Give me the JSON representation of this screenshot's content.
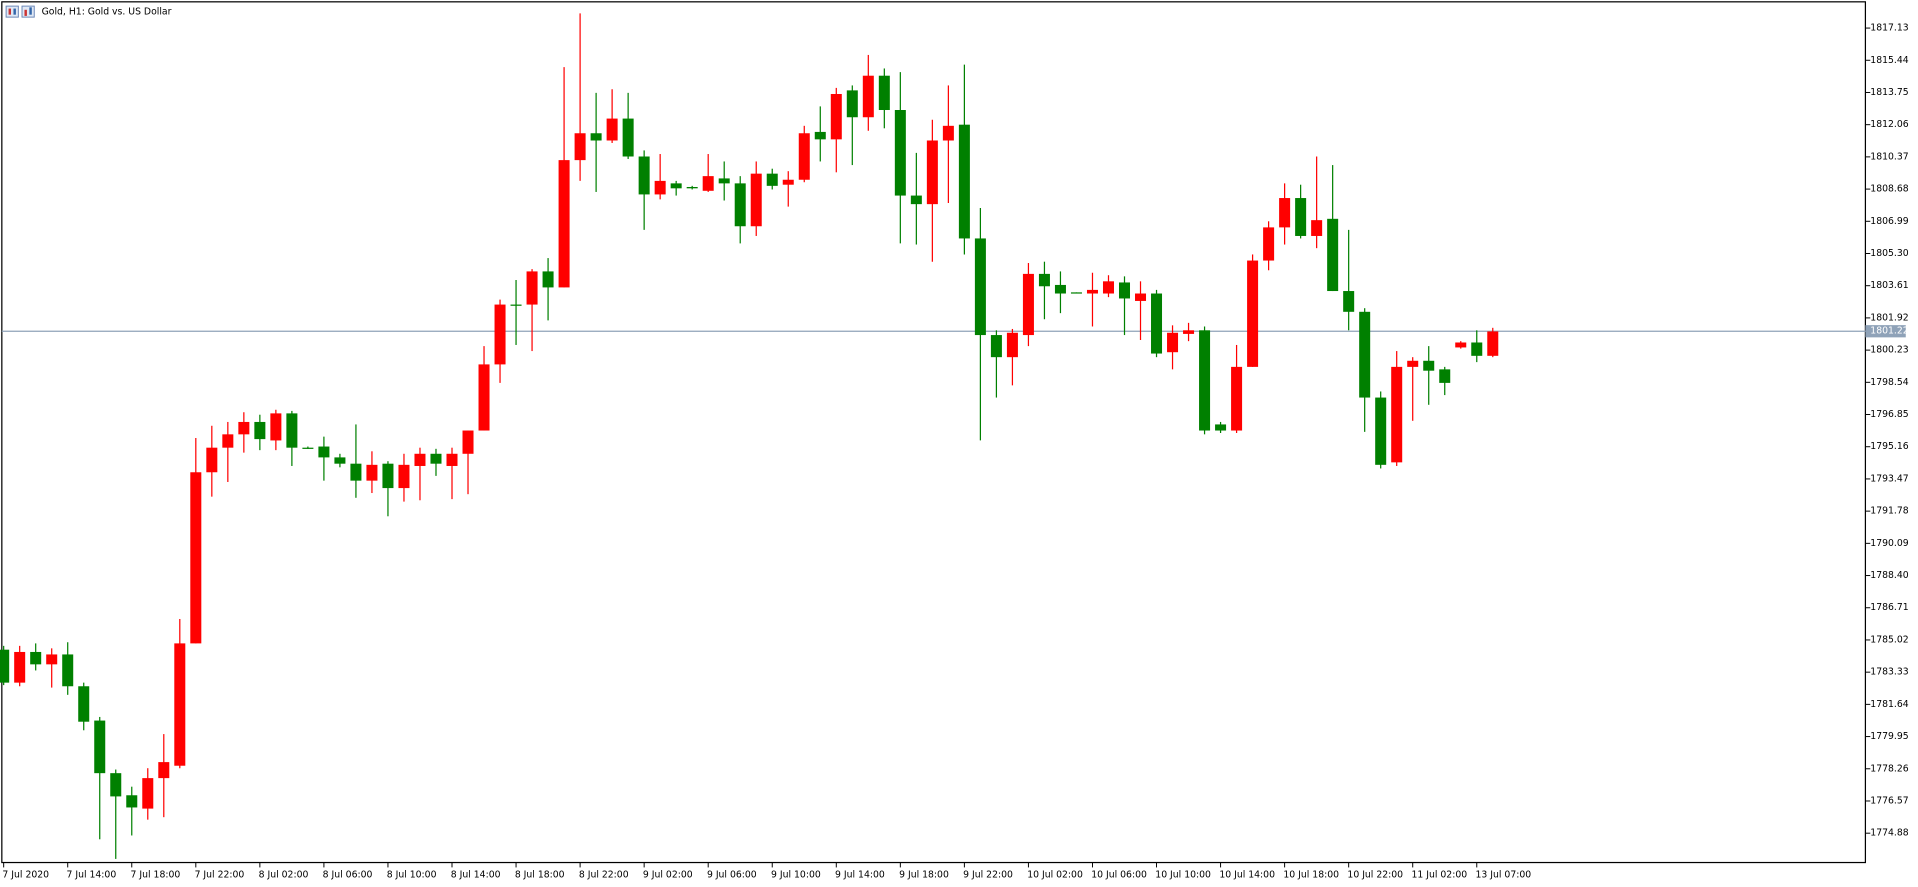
{
  "chart_data": {
    "type": "candlestick",
    "title": "Gold, H1:  Gold vs. US Dollar",
    "categories": [
      "7 Jul 2020",
      null,
      null,
      null,
      "7 Jul 14:00",
      null,
      null,
      null,
      "7 Jul 18:00",
      null,
      null,
      null,
      "7 Jul 22:00",
      null,
      null,
      null,
      "8 Jul 02:00",
      null,
      null,
      null,
      "8 Jul 06:00",
      null,
      null,
      null,
      "8 Jul 10:00",
      null,
      null,
      null,
      "8 Jul 14:00",
      null,
      null,
      null,
      "8 Jul 18:00",
      null,
      null,
      null,
      "8 Jul 22:00",
      null,
      null,
      null,
      "9 Jul 02:00",
      null,
      null,
      null,
      "9 Jul 06:00",
      null,
      null,
      null,
      "9 Jul 10:00",
      null,
      null,
      null,
      "9 Jul 14:00",
      null,
      null,
      null,
      "9 Jul 18:00",
      null,
      null,
      null,
      "9 Jul 22:00",
      null,
      null,
      null,
      "10 Jul 02:00",
      null,
      null,
      null,
      "10 Jul 06:00",
      null,
      null,
      null,
      "10 Jul 10:00",
      null,
      null,
      null,
      "10 Jul 14:00",
      null,
      null,
      null,
      "10 Jul 18:00",
      null,
      null,
      null,
      "10 Jul 22:00",
      null,
      null,
      null,
      "11 Jul 02:00",
      null,
      null,
      null,
      "13 Jul 07:00",
      null
    ],
    "open": [
      1784.51,
      1782.78,
      1784.39,
      1783.74,
      1784.26,
      1782.59,
      1780.79,
      1778.03,
      1776.87,
      1776.17,
      1777.77,
      1778.42,
      1784.84,
      1793.82,
      1795.11,
      1795.81,
      1796.46,
      1795.49,
      1796.91,
      1795.11,
      1795.17,
      1794.6,
      1794.27,
      1793.38,
      1794.27,
      1792.99,
      1794.15,
      1794.79,
      1794.15,
      1794.79,
      1796.01,
      1799.48,
      1802.62,
      1802.62,
      1804.36,
      1803.52,
      1810.2,
      1811.61,
      1811.23,
      1812.38,
      1810.39,
      1808.4,
      1808.98,
      1808.79,
      1808.59,
      1809.24,
      1808.98,
      1806.73,
      1809.49,
      1808.91,
      1809.17,
      1811.68,
      1811.29,
      1813.86,
      1812.45,
      1814.63,
      1812.83,
      1808.34,
      1807.89,
      1811.23,
      1812.06,
      1806.09,
      1801.02,
      1799.86,
      1801.02,
      1804.23,
      1803.65,
      1803.26,
      1803.2,
      1803.2,
      1803.78,
      1802.81,
      1803.2,
      1800.12,
      1801.08,
      1801.27,
      1796.33,
      1796.01,
      1799.35,
      1804.93,
      1806.67,
      1808.21,
      1806.22,
      1807.12,
      1803.33,
      1802.24,
      1797.74,
      1794.34,
      1799.35,
      1799.67,
      1799.22,
      1800.37,
      1800.63,
      1799.93
    ],
    "high": [
      1784.71,
      1784.71,
      1784.84,
      1784.58,
      1784.9,
      1782.78,
      1780.98,
      1778.22,
      1777.32,
      1778.29,
      1780.08,
      1786.12,
      1795.62,
      1796.26,
      1796.46,
      1796.97,
      1796.84,
      1797.1,
      1797.04,
      1795.17,
      1795.69,
      1794.79,
      1796.33,
      1794.92,
      1794.4,
      1794.79,
      1795.11,
      1795.05,
      1795.11,
      1796.01,
      1800.44,
      1802.88,
      1803.91,
      1804.48,
      1805.06,
      1815.08,
      1817.9,
      1813.73,
      1813.92,
      1813.73,
      1810.71,
      1810.52,
      1809.11,
      1808.85,
      1810.52,
      1810.13,
      1809.36,
      1810.13,
      1809.75,
      1809.62,
      1812.0,
      1813.02,
      1813.99,
      1814.12,
      1815.72,
      1815.01,
      1814.82,
      1810.58,
      1812.32,
      1814.12,
      1815.21,
      1807.69,
      1801.27,
      1801.34,
      1804.8,
      1804.87,
      1804.36,
      1803.26,
      1804.29,
      1804.16,
      1804.1,
      1803.84,
      1803.39,
      1801.53,
      1801.66,
      1801.47,
      1796.46,
      1800.5,
      1805.25,
      1806.99,
      1808.98,
      1808.91,
      1810.39,
      1809.94,
      1806.54,
      1802.43,
      1798.06,
      1800.18,
      1799.86,
      1800.44,
      1799.35,
      1800.7,
      1801.27,
      1801.4
    ],
    "low": [
      1782.65,
      1782.59,
      1783.42,
      1782.52,
      1782.14,
      1780.28,
      1774.56,
      1773.53,
      1774.76,
      1775.59,
      1775.72,
      1778.29,
      1784.84,
      1792.54,
      1793.31,
      1794.85,
      1794.98,
      1794.98,
      1794.15,
      1795.05,
      1793.38,
      1794.08,
      1792.48,
      1792.73,
      1791.51,
      1792.28,
      1792.35,
      1793.63,
      1792.41,
      1792.67,
      1796.01,
      1798.51,
      1800.5,
      1800.18,
      1801.79,
      1803.52,
      1809.11,
      1808.53,
      1811.1,
      1810.26,
      1806.54,
      1808.14,
      1808.34,
      1808.66,
      1808.53,
      1808.08,
      1805.83,
      1806.22,
      1808.66,
      1807.76,
      1809.04,
      1810.13,
      1809.56,
      1809.94,
      1811.74,
      1811.87,
      1805.83,
      1805.77,
      1804.87,
      1807.95,
      1805.25,
      1795.49,
      1797.74,
      1798.38,
      1800.44,
      1801.85,
      1802.17,
      1803.2,
      1801.47,
      1803.01,
      1801.02,
      1800.76,
      1799.86,
      1799.22,
      1800.7,
      1795.81,
      1795.88,
      1795.88,
      1799.35,
      1804.42,
      1805.77,
      1806.09,
      1805.58,
      1803.33,
      1801.27,
      1795.94,
      1794.02,
      1794.15,
      1796.52,
      1797.36,
      1797.87,
      1800.31,
      1799.6,
      1799.86
    ],
    "close": [
      1782.78,
      1784.39,
      1783.74,
      1784.26,
      1782.59,
      1780.73,
      1778.03,
      1776.81,
      1776.23,
      1777.77,
      1778.61,
      1784.84,
      1793.82,
      1795.11,
      1795.81,
      1796.46,
      1795.56,
      1796.91,
      1795.11,
      1795.05,
      1794.6,
      1794.27,
      1793.38,
      1794.21,
      1792.99,
      1794.21,
      1794.79,
      1794.27,
      1794.79,
      1796.01,
      1799.48,
      1802.62,
      1802.56,
      1804.36,
      1803.52,
      1810.2,
      1811.61,
      1811.23,
      1812.38,
      1810.39,
      1808.4,
      1809.11,
      1808.72,
      1808.72,
      1809.36,
      1808.98,
      1806.73,
      1809.49,
      1808.85,
      1809.17,
      1811.61,
      1811.29,
      1813.67,
      1812.45,
      1814.63,
      1812.83,
      1808.34,
      1807.89,
      1811.23,
      1812.0,
      1806.09,
      1801.02,
      1799.86,
      1801.14,
      1804.23,
      1803.58,
      1803.2,
      1803.2,
      1803.39,
      1803.84,
      1802.94,
      1803.2,
      1800.05,
      1801.14,
      1801.27,
      1796.01,
      1796.01,
      1799.35,
      1804.93,
      1806.67,
      1808.21,
      1806.22,
      1807.05,
      1803.33,
      1802.24,
      1797.74,
      1794.21,
      1799.35,
      1799.67,
      1799.15,
      1798.51,
      1800.63,
      1799.93,
      1801.21
    ],
    "up_color": "#ff0000",
    "down_color": "#008000",
    "last_price": 1801.22,
    "last_price_color": "#8fa2b8",
    "ylim": [
      1773.34,
      1818.41
    ],
    "yticks": [
      1817.13,
      1815.44,
      1813.75,
      1812.06,
      1810.37,
      1808.68,
      1806.99,
      {
        "value": 1805.3,
        "label": "1805.30"
      },
      1803.61,
      1801.92,
      1800.23,
      1798.54,
      1796.85,
      1795.16,
      1793.47,
      1791.78,
      1790.09,
      {
        "value": 1788.4,
        "label": "1788.40"
      },
      1786.71,
      1785.02,
      1783.33,
      1781.64,
      1779.95,
      1778.26,
      1776.57,
      1774.88
    ],
    "grid": false
  }
}
